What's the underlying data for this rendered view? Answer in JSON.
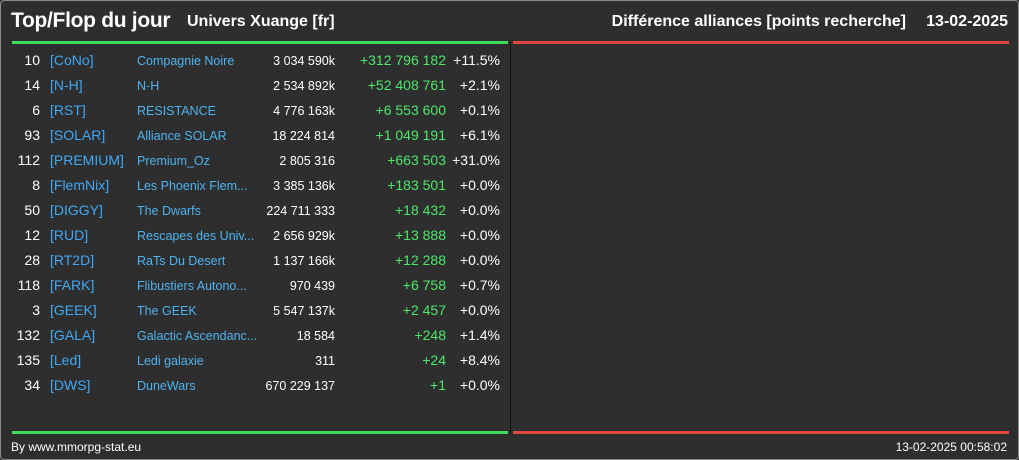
{
  "header": {
    "title": "Top/Flop du jour",
    "universe": "Univers Xuange [fr]",
    "right_title": "Différence alliances [points recherche]",
    "date": "13-02-2025"
  },
  "colors": {
    "positive": "#4ce86a",
    "negative": "#e0483e",
    "link": "#3fa9f5",
    "background": "#2e2e2e"
  },
  "rows": [
    {
      "rank": "10",
      "tag": "[CoNo]",
      "name": "Compagnie Noire",
      "points": "3 034 590k",
      "diff": "+312 796 182",
      "pct": "+11.5%"
    },
    {
      "rank": "14",
      "tag": "[N-H]",
      "name": "N-H",
      "points": "2 534 892k",
      "diff": "+52 408 761",
      "pct": "+2.1%"
    },
    {
      "rank": "6",
      "tag": "[RST]",
      "name": "RESISTANCE",
      "points": "4 776 163k",
      "diff": "+6 553 600",
      "pct": "+0.1%"
    },
    {
      "rank": "93",
      "tag": "[SOLAR]",
      "name": "Alliance SOLAR",
      "points": "18 224 814",
      "diff": "+1 049 191",
      "pct": "+6.1%"
    },
    {
      "rank": "112",
      "tag": "[PREMIUM]",
      "name": "Premium_Oz",
      "points": "2 805 316",
      "diff": "+663 503",
      "pct": "+31.0%"
    },
    {
      "rank": "8",
      "tag": "[FlemNix]",
      "name": "Les Phoenix Flem...",
      "points": "3 385 136k",
      "diff": "+183 501",
      "pct": "+0.0%"
    },
    {
      "rank": "50",
      "tag": "[DIGGY]",
      "name": "The Dwarfs",
      "points": "224 711 333",
      "diff": "+18 432",
      "pct": "+0.0%"
    },
    {
      "rank": "12",
      "tag": "[RUD]",
      "name": "Rescapes des Univ...",
      "points": "2 656 929k",
      "diff": "+13 888",
      "pct": "+0.0%"
    },
    {
      "rank": "28",
      "tag": "[RT2D]",
      "name": "RaTs Du Desert",
      "points": "1 137 166k",
      "diff": "+12 288",
      "pct": "+0.0%"
    },
    {
      "rank": "118",
      "tag": "[FARK]",
      "name": "Flibustiers Autono...",
      "points": "970 439",
      "diff": "+6 758",
      "pct": "+0.7%"
    },
    {
      "rank": "3",
      "tag": "[GEEK]",
      "name": "The GEEK",
      "points": "5 547 137k",
      "diff": "+2 457",
      "pct": "+0.0%"
    },
    {
      "rank": "132",
      "tag": "[GALA]",
      "name": "Galactic Ascendanc...",
      "points": "18 584",
      "diff": "+248",
      "pct": "+1.4%"
    },
    {
      "rank": "135",
      "tag": "[Led]",
      "name": "Ledi galaxie",
      "points": "311",
      "diff": "+24",
      "pct": "+8.4%"
    },
    {
      "rank": "34",
      "tag": "[DWS]",
      "name": "DuneWars",
      "points": "670 229 137",
      "diff": "+1",
      "pct": "+0.0%"
    }
  ],
  "footer": {
    "credit": "By www.mmorpg-stat.eu",
    "timestamp": "13-02-2025 00:58:02"
  }
}
